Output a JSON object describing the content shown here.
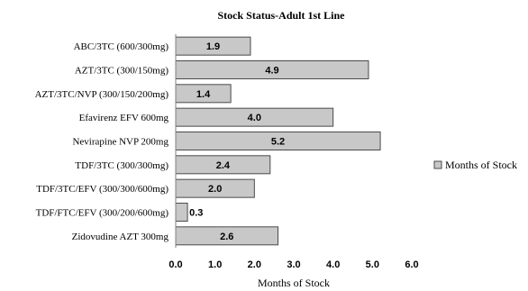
{
  "chart_data": {
    "type": "bar",
    "orientation": "horizontal",
    "title": "Stock Status-Adult 1st Line",
    "categories": [
      "ABC/3TC (600/300mg)",
      "AZT/3TC (300/150mg)",
      "AZT/3TC/NVP (300/150/200mg)",
      "Efavirenz EFV 600mg",
      "Nevirapine NVP 200mg",
      "TDF/3TC (300/300mg)",
      "TDF/3TC/EFV (300/300/600mg)",
      "TDF/FTC/EFV (300/200/600mg)",
      "Zidovudine AZT 300mg"
    ],
    "series": [
      {
        "name": "Months of Stock",
        "values": [
          1.9,
          4.9,
          1.4,
          4.0,
          5.2,
          2.4,
          2.0,
          0.3,
          2.6
        ],
        "labels": [
          "1.9",
          "4.9",
          "1.4",
          "4.0",
          "5.2",
          "2.4",
          "2.0",
          "0.3",
          "2.6"
        ]
      }
    ],
    "xlabel": "Months of Stock",
    "ylabel": "",
    "xlim": [
      0,
      6.0
    ],
    "xticks": [
      "0.0",
      "1.0",
      "2.0",
      "3.0",
      "4.0",
      "5.0",
      "6.0"
    ],
    "grid": false,
    "legend_position": "right",
    "colors": {
      "bar_fill": "#c8c8c8",
      "bar_stroke": "#4a4a4a"
    }
  }
}
